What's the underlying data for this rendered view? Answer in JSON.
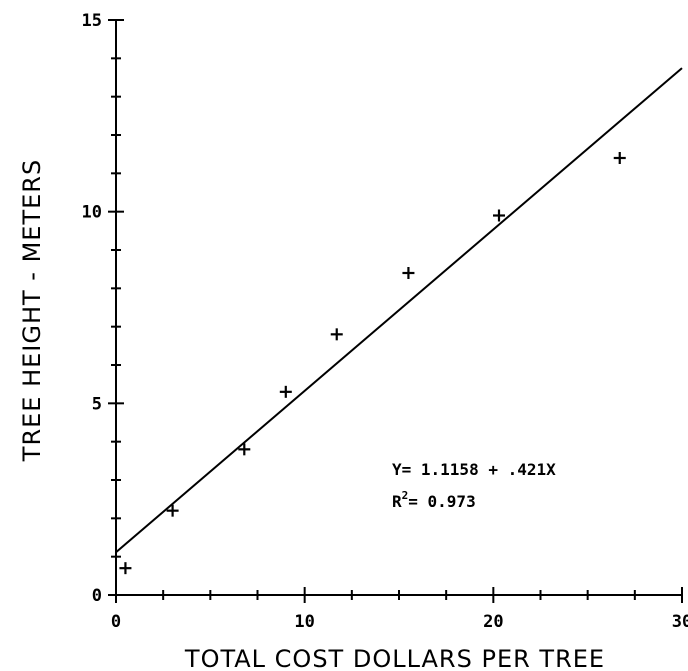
{
  "chart_data": {
    "type": "scatter",
    "title": "",
    "xlabel": "TOTAL COST DOLLARS PER TREE",
    "ylabel": "TREE HEIGHT - METERS",
    "xlim": [
      0,
      30
    ],
    "ylim": [
      0,
      15
    ],
    "xticks": [
      0,
      10,
      20,
      30
    ],
    "xtick_labels": [
      "0",
      "10",
      "20",
      "30"
    ],
    "yticks": [
      0,
      5,
      10,
      15
    ],
    "ytick_labels": [
      "0",
      "5",
      "10",
      "15"
    ],
    "x_minor_step": 2.5,
    "y_minor_step": 1,
    "grid": false,
    "series": [
      {
        "marker": "+",
        "points": [
          {
            "x": 0.5,
            "y": 0.7
          },
          {
            "x": 3.0,
            "y": 2.2
          },
          {
            "x": 6.8,
            "y": 3.8
          },
          {
            "x": 9.0,
            "y": 5.3
          },
          {
            "x": 11.7,
            "y": 6.8
          },
          {
            "x": 15.5,
            "y": 8.4
          },
          {
            "x": 20.3,
            "y": 9.9
          },
          {
            "x": 26.7,
            "y": 11.4
          }
        ]
      }
    ],
    "fit_line": {
      "intercept": 1.1158,
      "slope": 0.421,
      "x_range": [
        0,
        30
      ]
    },
    "annotations": {
      "equation": "Y= 1.1158 + .421X",
      "r2_label": "R",
      "r2_sup": "2",
      "r2_value": "= 0.973"
    }
  }
}
